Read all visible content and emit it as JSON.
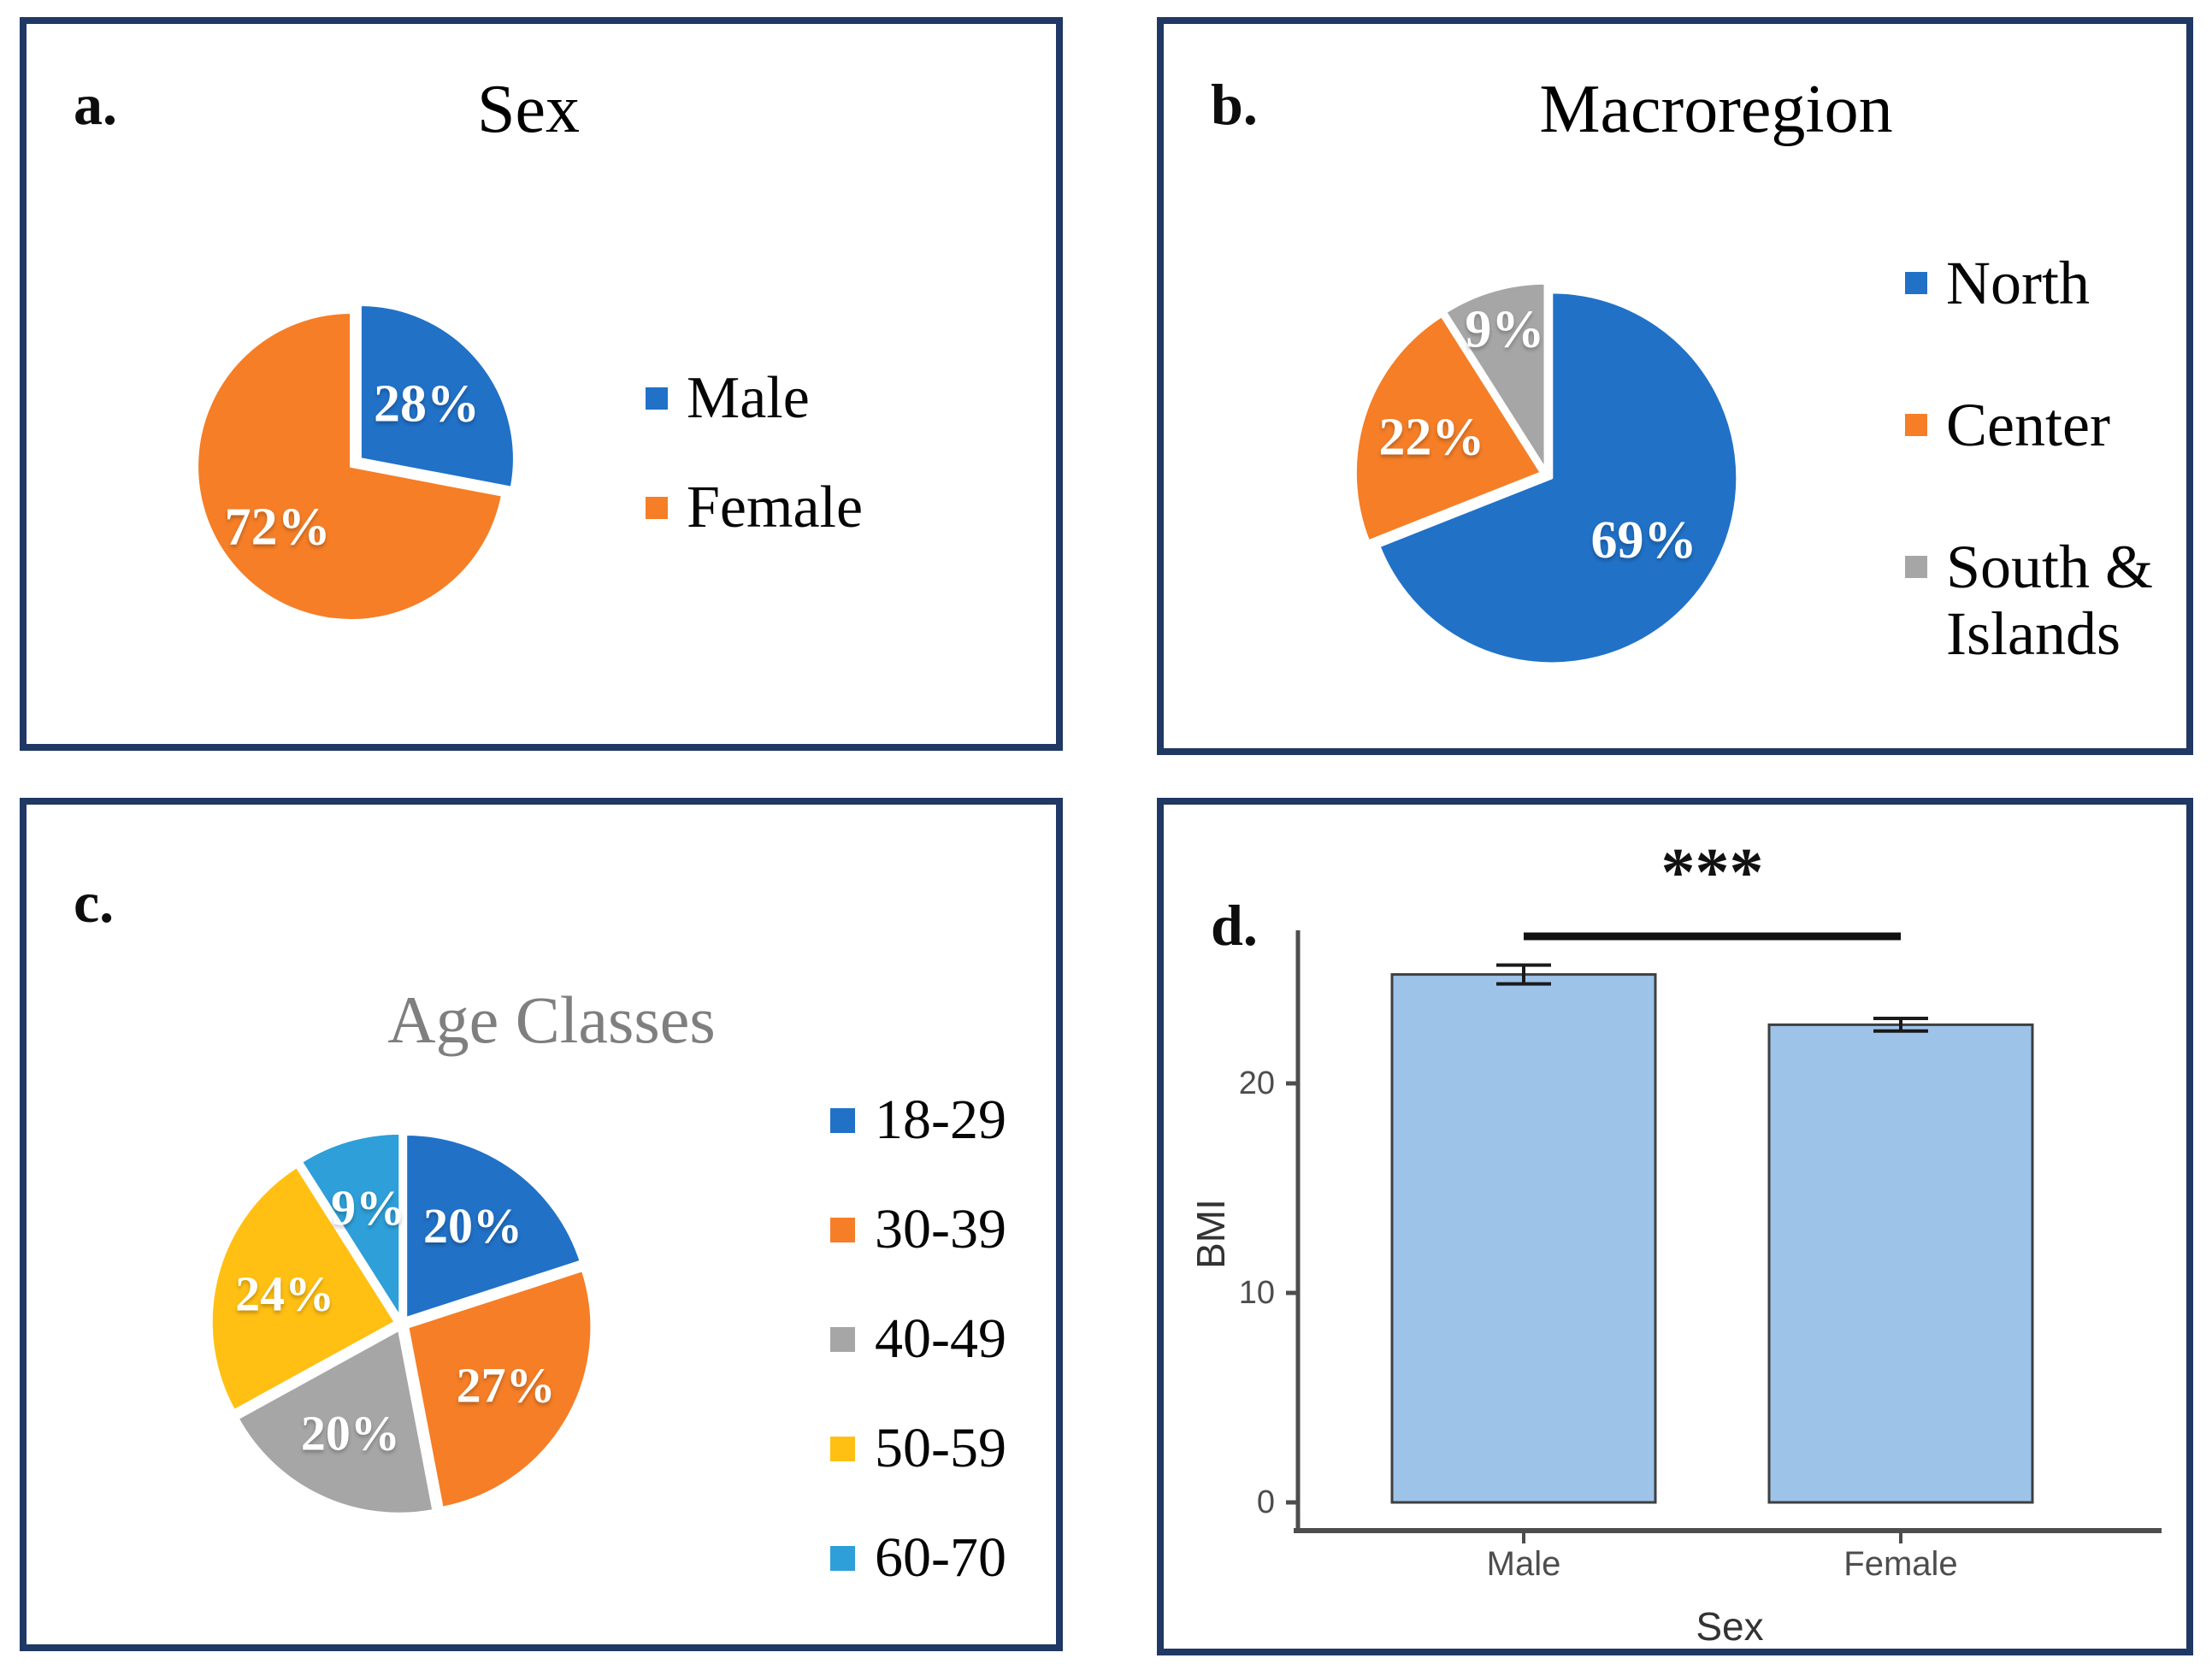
{
  "panels": {
    "a": {
      "letter": "a."
    },
    "b": {
      "letter": "b."
    },
    "c": {
      "letter": "c."
    },
    "d": {
      "letter": "d."
    }
  },
  "colors": {
    "blue": "#2171C7",
    "orange": "#F57E27",
    "gray": "#A6A6A6",
    "yellow": "#FFC013",
    "cyan": "#2E9FD8",
    "bar_fill": "#9DC3E9",
    "bar_stroke": "#3F3F3F",
    "error_bar": "#1A1A1A",
    "panel_border": "#1F3864",
    "axis": "#4D4D4D",
    "title_gray": "#7F7F7F",
    "pie_label": "#FFFFFF",
    "significance": "#111111"
  },
  "chart_data": [
    {
      "id": "sex_pie",
      "panel": "a",
      "type": "pie",
      "title": "Sex",
      "categories": [
        "Male",
        "Female"
      ],
      "values": [
        28,
        72
      ],
      "unit": "%",
      "colors": [
        "blue",
        "orange"
      ],
      "legend_position": "right",
      "start_angle_deg": 0,
      "direction": "clockwise"
    },
    {
      "id": "macroregion_pie",
      "panel": "b",
      "type": "pie",
      "title": "Macroregion",
      "categories": [
        "North",
        "Center",
        "South & Islands"
      ],
      "values": [
        69,
        22,
        9
      ],
      "unit": "%",
      "colors": [
        "blue",
        "orange",
        "gray"
      ],
      "legend_position": "right",
      "start_angle_deg": 0,
      "direction": "clockwise"
    },
    {
      "id": "age_pie",
      "panel": "c",
      "type": "pie",
      "title": "Age Classes",
      "categories": [
        "18-29",
        "30-39",
        "40-49",
        "50-59",
        "60-70"
      ],
      "values": [
        20,
        27,
        20,
        24,
        9
      ],
      "unit": "%",
      "colors": [
        "blue",
        "orange",
        "gray",
        "yellow",
        "cyan"
      ],
      "legend_position": "right",
      "start_angle_deg": 0,
      "direction": "clockwise"
    },
    {
      "id": "bmi_bar",
      "panel": "d",
      "type": "bar",
      "categories": [
        "Male",
        "Female"
      ],
      "values": [
        25.2,
        22.8
      ],
      "errors": [
        0.45,
        0.3
      ],
      "xlabel": "Sex",
      "ylabel": "BMI",
      "yticks": [
        0,
        10,
        20
      ],
      "ylim": [
        0,
        27
      ],
      "grid": false,
      "significance": "***",
      "significance_between": [
        "Male",
        "Female"
      ],
      "bar_color": "bar_fill"
    }
  ]
}
